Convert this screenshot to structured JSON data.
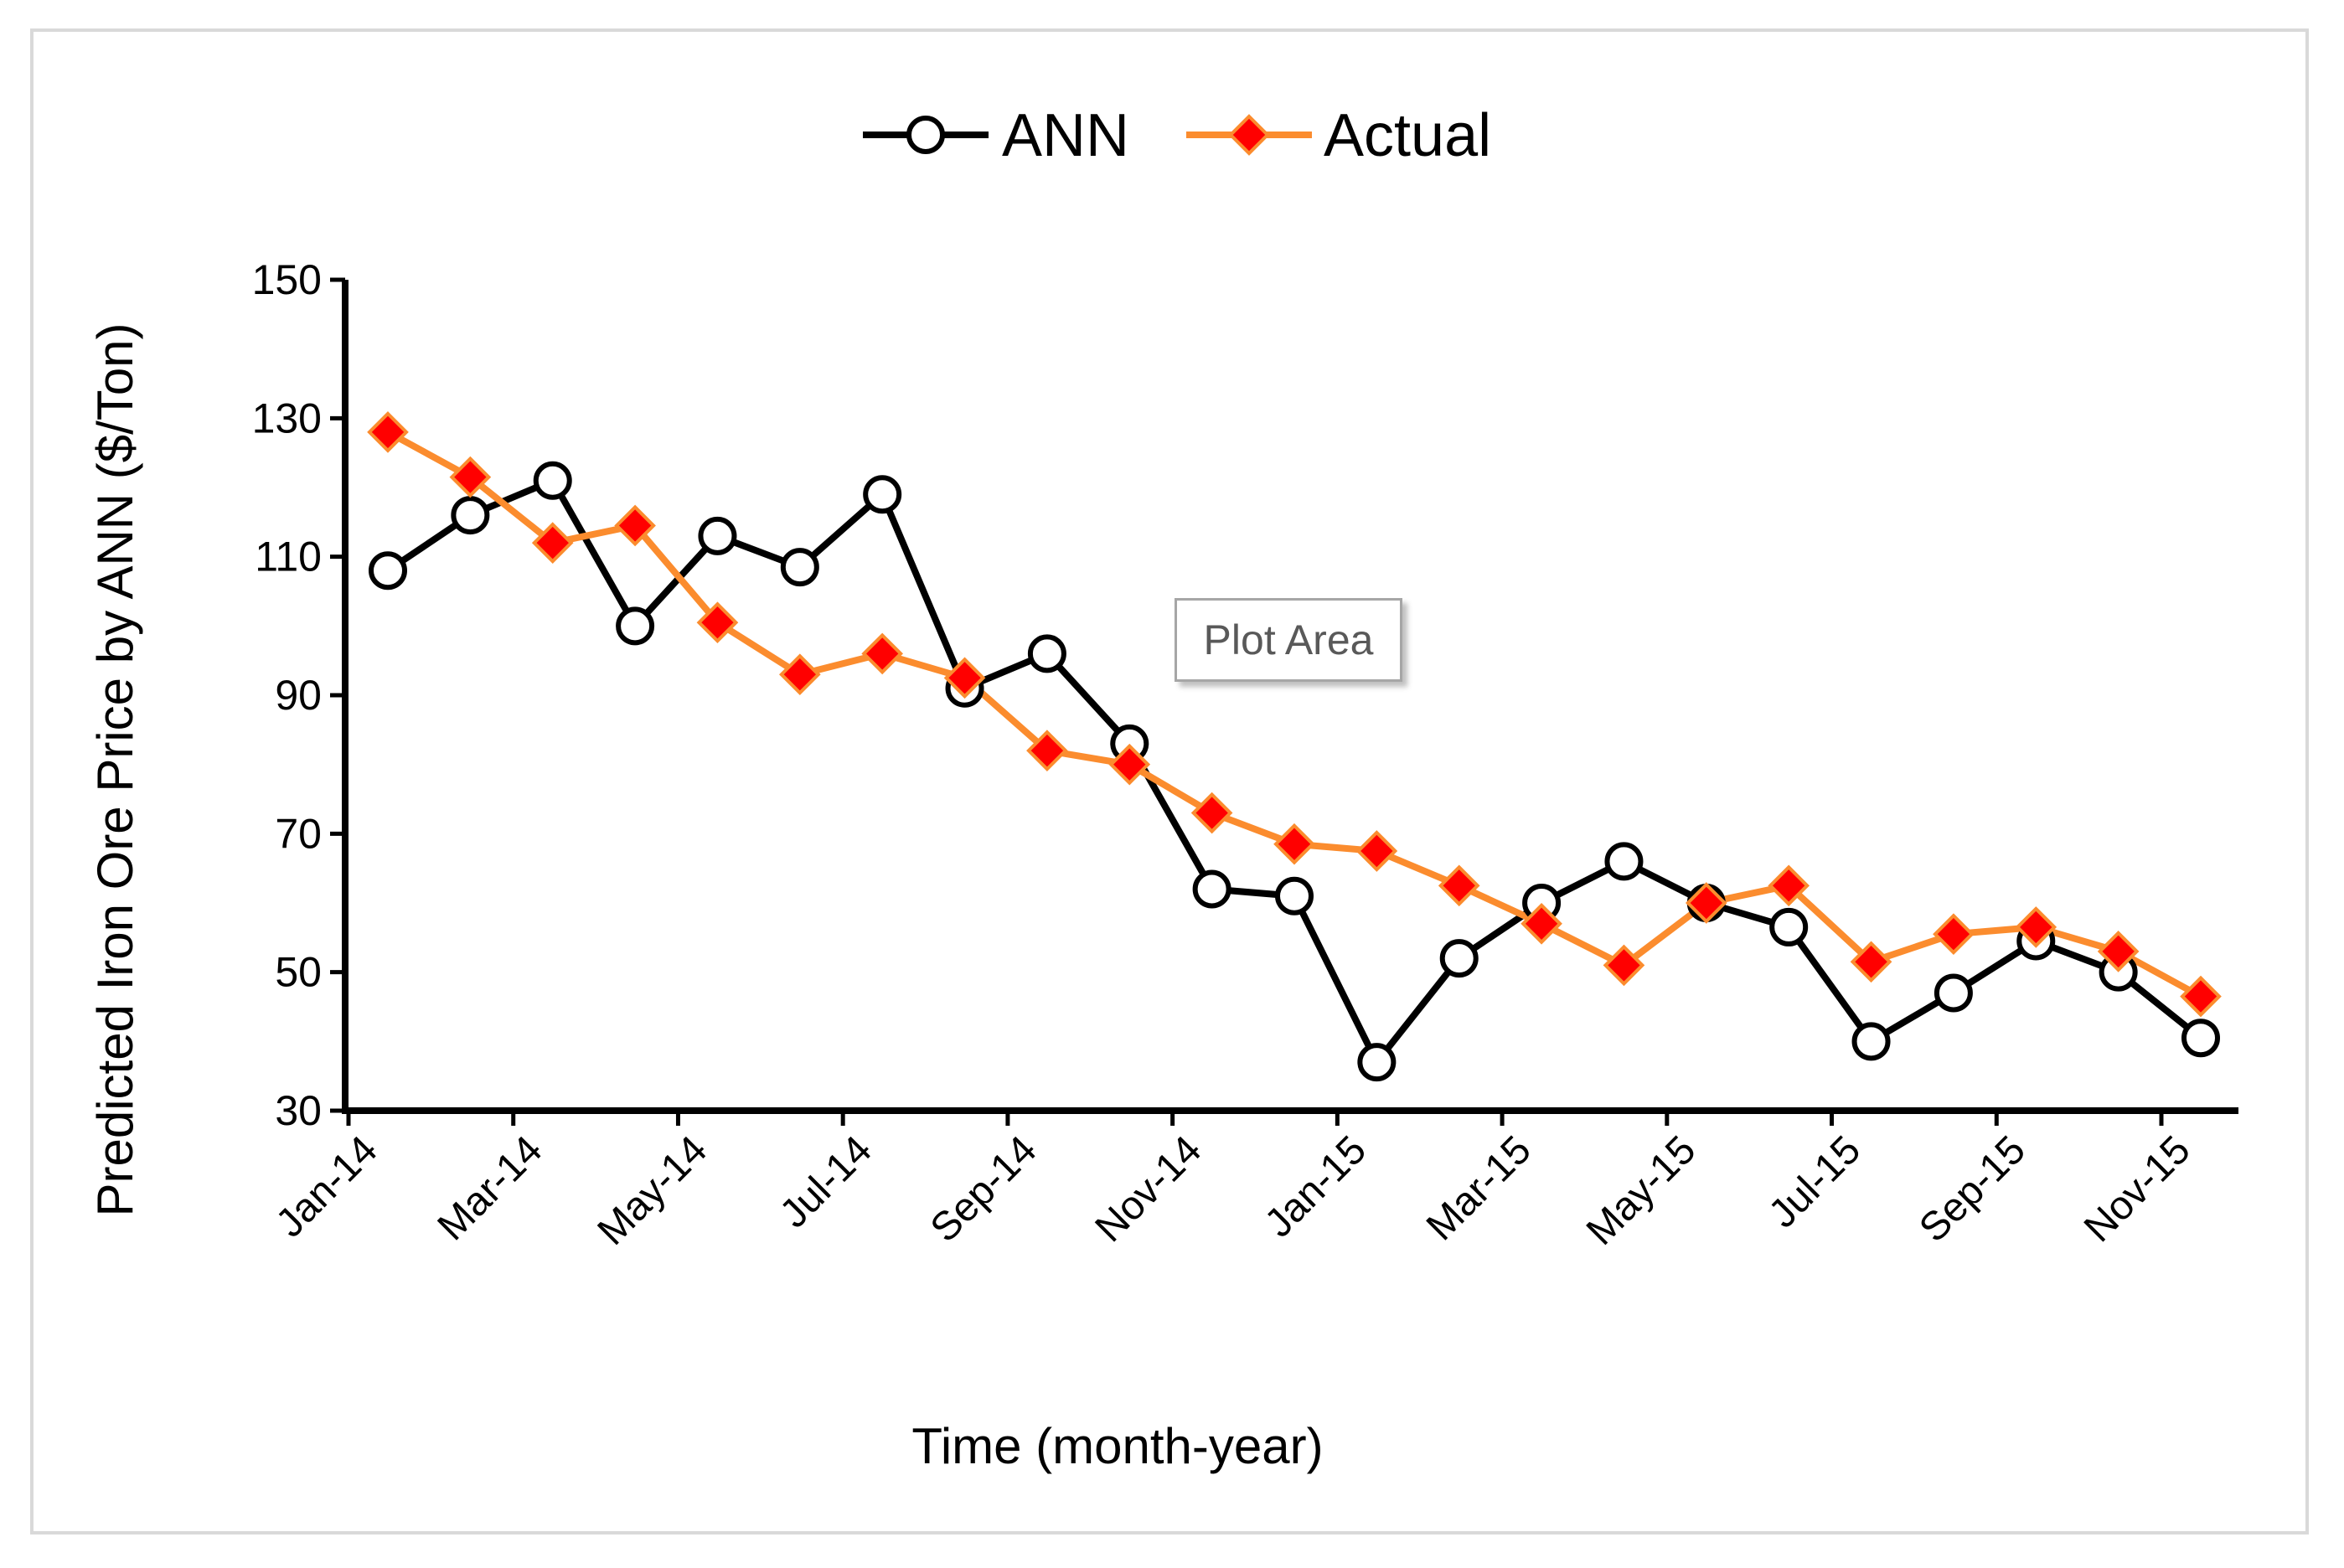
{
  "chart_data": {
    "type": "line",
    "title": "",
    "xlabel": "Time (month-year)",
    "ylabel": "Predicted Iron Ore Price by ANN ($/Ton)",
    "ylim": [
      30,
      150
    ],
    "yticks": [
      30,
      50,
      70,
      90,
      110,
      130,
      150
    ],
    "ytick_labels": [
      "30",
      "50",
      "70",
      "90",
      "110",
      "130",
      "150"
    ],
    "xtick_labels": [
      "Jan-14",
      "Mar-14",
      "May-14",
      "Jul-14",
      "Sep-14",
      "Nov-14",
      "Jan-15",
      "Mar-15",
      "May-15",
      "Jul-15",
      "Sep-15",
      "Nov-15"
    ],
    "categories": [
      "Jan-14",
      "Feb-14",
      "Mar-14",
      "Apr-14",
      "May-14",
      "Jun-14",
      "Jul-14",
      "Aug-14",
      "Sep-14",
      "Oct-14",
      "Nov-14",
      "Dec-14",
      "Jan-15",
      "Feb-15",
      "Mar-15",
      "Apr-15",
      "May-15",
      "Jun-15",
      "Jul-15",
      "Aug-15",
      "Sep-15",
      "Oct-15",
      "Nov-15"
    ],
    "legend_position": "top-center",
    "grid": false,
    "series": [
      {
        "name": "ANN",
        "color": "#000000",
        "marker": "circle-open",
        "values": [
          108,
          116,
          121,
          100,
          113,
          108.5,
          119,
          91,
          96,
          83,
          62,
          61,
          37,
          52,
          60,
          66,
          60,
          56.5,
          40,
          47,
          54.5,
          50,
          40.5
        ]
      },
      {
        "name": "Actual",
        "color": "#fb8c2e",
        "marker_color": "#ff0000",
        "marker": "diamond",
        "values": [
          128,
          121.5,
          112,
          114.5,
          100.5,
          93,
          96,
          92.5,
          82,
          80,
          73,
          68.5,
          67.5,
          62.5,
          57,
          51,
          60,
          62.5,
          51.5,
          55.5,
          56.5,
          53,
          46.5
        ]
      }
    ]
  },
  "annotation": {
    "text": "Plot Area"
  }
}
